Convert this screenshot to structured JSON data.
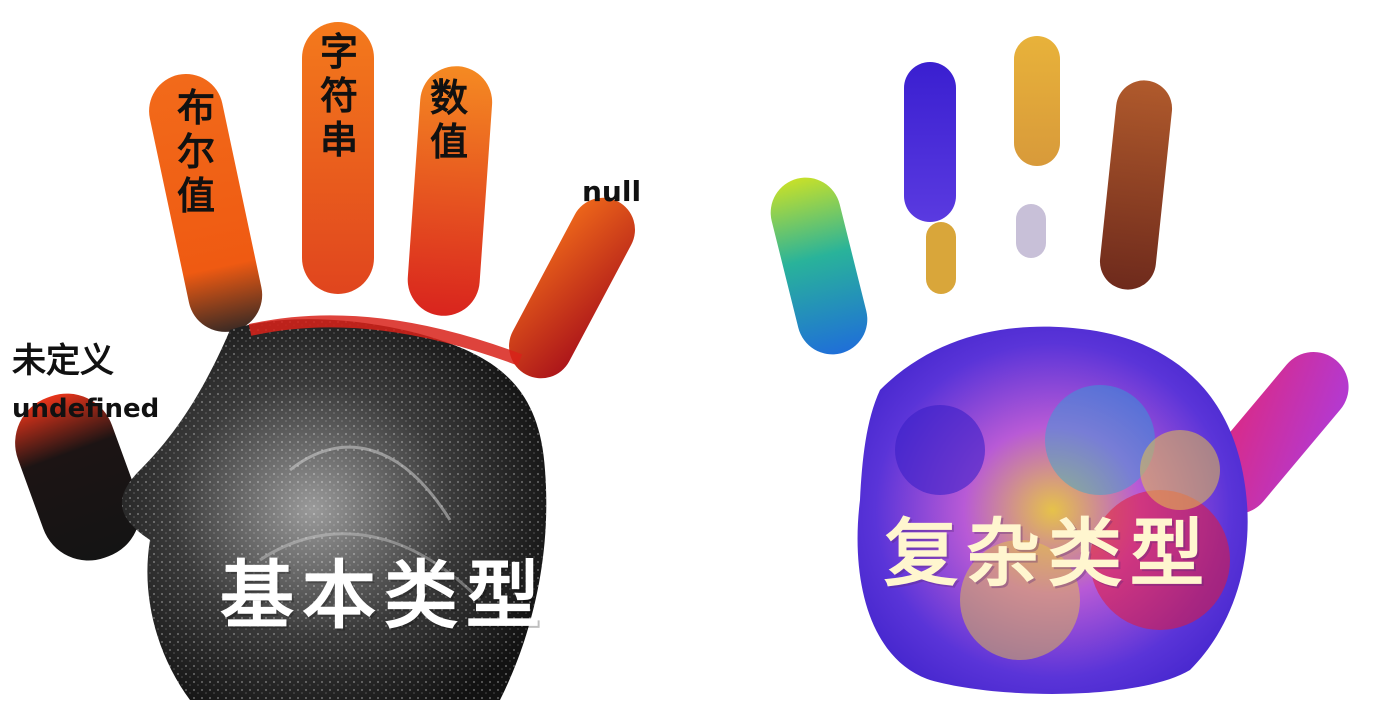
{
  "left_hand": {
    "title": "基本类型",
    "fingers": {
      "boolean": "布尔值",
      "string": "字符串",
      "number": "数值",
      "null": "null"
    },
    "thumb_cn": "未定义",
    "thumb_en": "undefined",
    "ink_colors": [
      "#1c1c1c",
      "#e23a12",
      "#f07a18",
      "#c4141a"
    ]
  },
  "right_hand": {
    "title": "复杂类型",
    "ink_colors": [
      "#4a2bd6",
      "#e6a63a",
      "#9b3b22",
      "#2aa8d8",
      "#b84fd8",
      "#e31a3a",
      "#c2d62a"
    ]
  }
}
